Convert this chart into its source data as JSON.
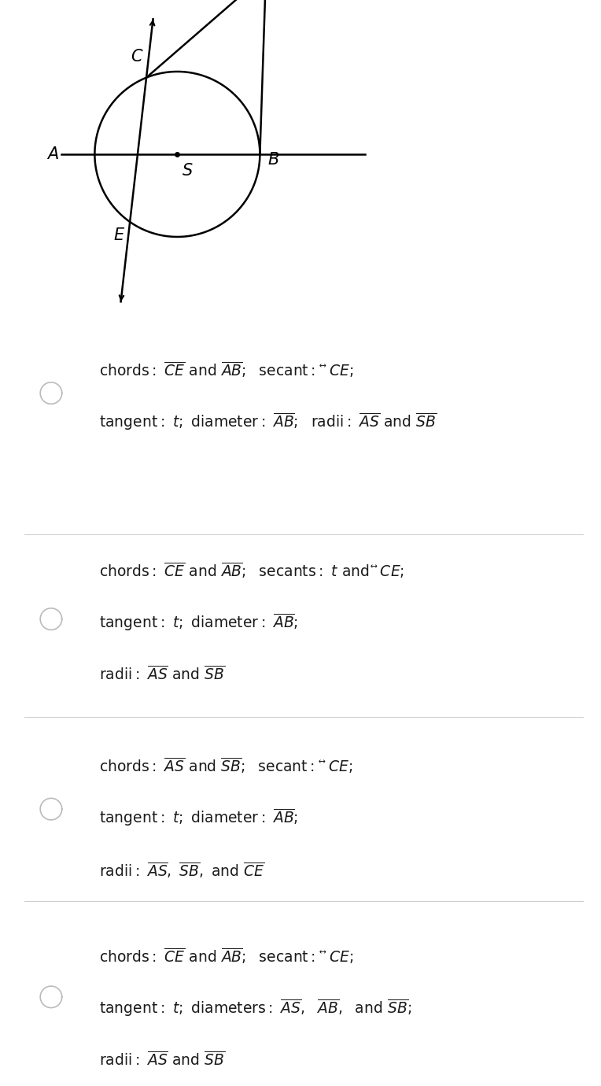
{
  "bg_color": "#ffffff",
  "fig_width": 7.64,
  "fig_height": 13.8,
  "options": [
    {
      "lines": [
        [
          "chords: ",
          "CE",
          " and ",
          "AB",
          ";  secant: ",
          "CE_lr",
          ";"
        ],
        [
          "tangent: ",
          "t_it",
          "; diameter: ",
          "AB",
          ";  radii: ",
          "AS",
          " and ",
          "SB",
          ""
        ]
      ]
    },
    {
      "lines": [
        [
          "chords: ",
          "CE",
          " and ",
          "AB",
          ";  secants: ",
          "t_it",
          " and ",
          "CE_lr",
          ";"
        ],
        [
          "tangent: ",
          "t_it",
          "; diameter: ",
          "AB",
          ";"
        ],
        [
          "radii: ",
          "AS",
          " and ",
          "SB",
          ""
        ]
      ]
    },
    {
      "lines": [
        [
          "chords: ",
          "AS",
          " and ",
          "SB",
          ";  secant: ",
          "CE_lr",
          ";"
        ],
        [
          "tangent: ",
          "t_it",
          "; diameter: ",
          "AB",
          ";"
        ],
        [
          "radii: ",
          "AS",
          ", ",
          "SB",
          ", and ",
          "CE",
          ""
        ]
      ]
    },
    {
      "lines": [
        [
          "chords: ",
          "CE",
          " and ",
          "AB",
          ";  secant: ",
          "CE_lr",
          ";"
        ],
        [
          "tangent: ",
          "t_it",
          "; diameters: ",
          "AS",
          ",  ",
          "AB",
          ",  and ",
          "SB",
          ";"
        ],
        [
          "radii: ",
          "AS",
          " and ",
          "SB",
          ""
        ]
      ]
    }
  ]
}
